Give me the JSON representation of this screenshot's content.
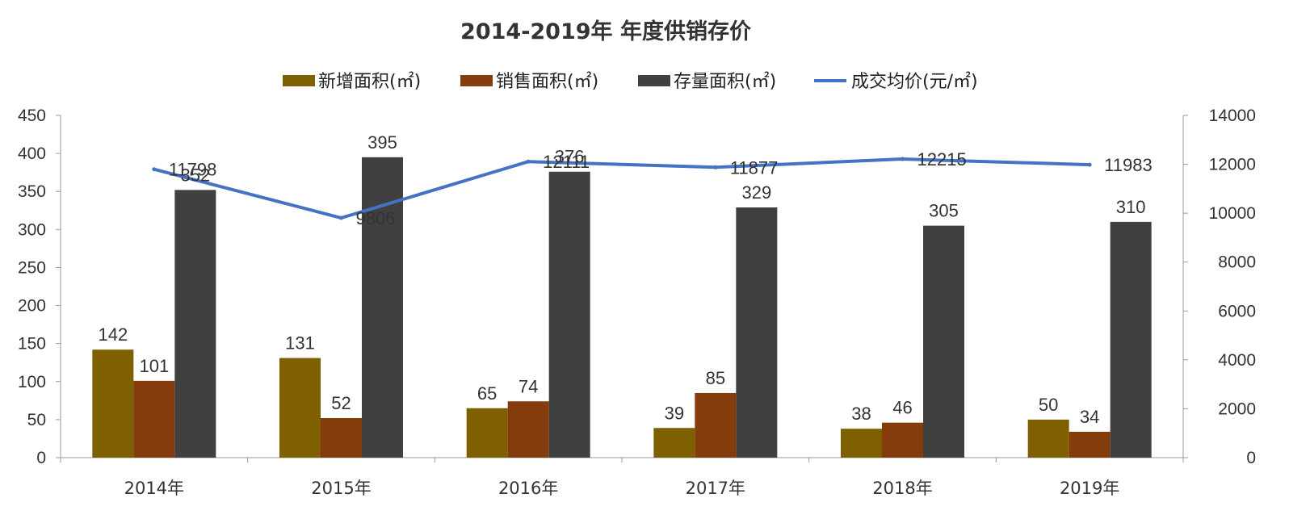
{
  "chart_data": {
    "type": "bar",
    "title": "2014-2019年 年度供销存价",
    "categories": [
      "2014年",
      "2015年",
      "2016年",
      "2017年",
      "2018年",
      "2019年"
    ],
    "series": [
      {
        "name": "新增面积(㎡)",
        "type": "bar",
        "axis": "left",
        "color": "#7F6000",
        "values": [
          142,
          131,
          65,
          39,
          38,
          50
        ]
      },
      {
        "name": "销售面积(㎡)",
        "type": "bar",
        "axis": "left",
        "color": "#843C0C",
        "values": [
          101,
          52,
          74,
          85,
          46,
          34
        ]
      },
      {
        "name": "存量面积(㎡)",
        "type": "bar",
        "axis": "left",
        "color": "#404040",
        "values": [
          352,
          395,
          376,
          329,
          305,
          310
        ]
      },
      {
        "name": "成交均价(元/㎡)",
        "type": "line",
        "axis": "right",
        "color": "#4472C4",
        "values": [
          11798,
          9806,
          12111,
          11877,
          12215,
          11983
        ]
      }
    ],
    "ylim_left": [
      0,
      450
    ],
    "yticks_left": [
      0,
      50,
      100,
      150,
      200,
      250,
      300,
      350,
      400,
      450
    ],
    "ylim_right": [
      0,
      14000
    ],
    "yticks_right": [
      0,
      2000,
      4000,
      6000,
      8000,
      10000,
      12000,
      14000
    ],
    "legend_position": "top-center",
    "grid": false
  }
}
